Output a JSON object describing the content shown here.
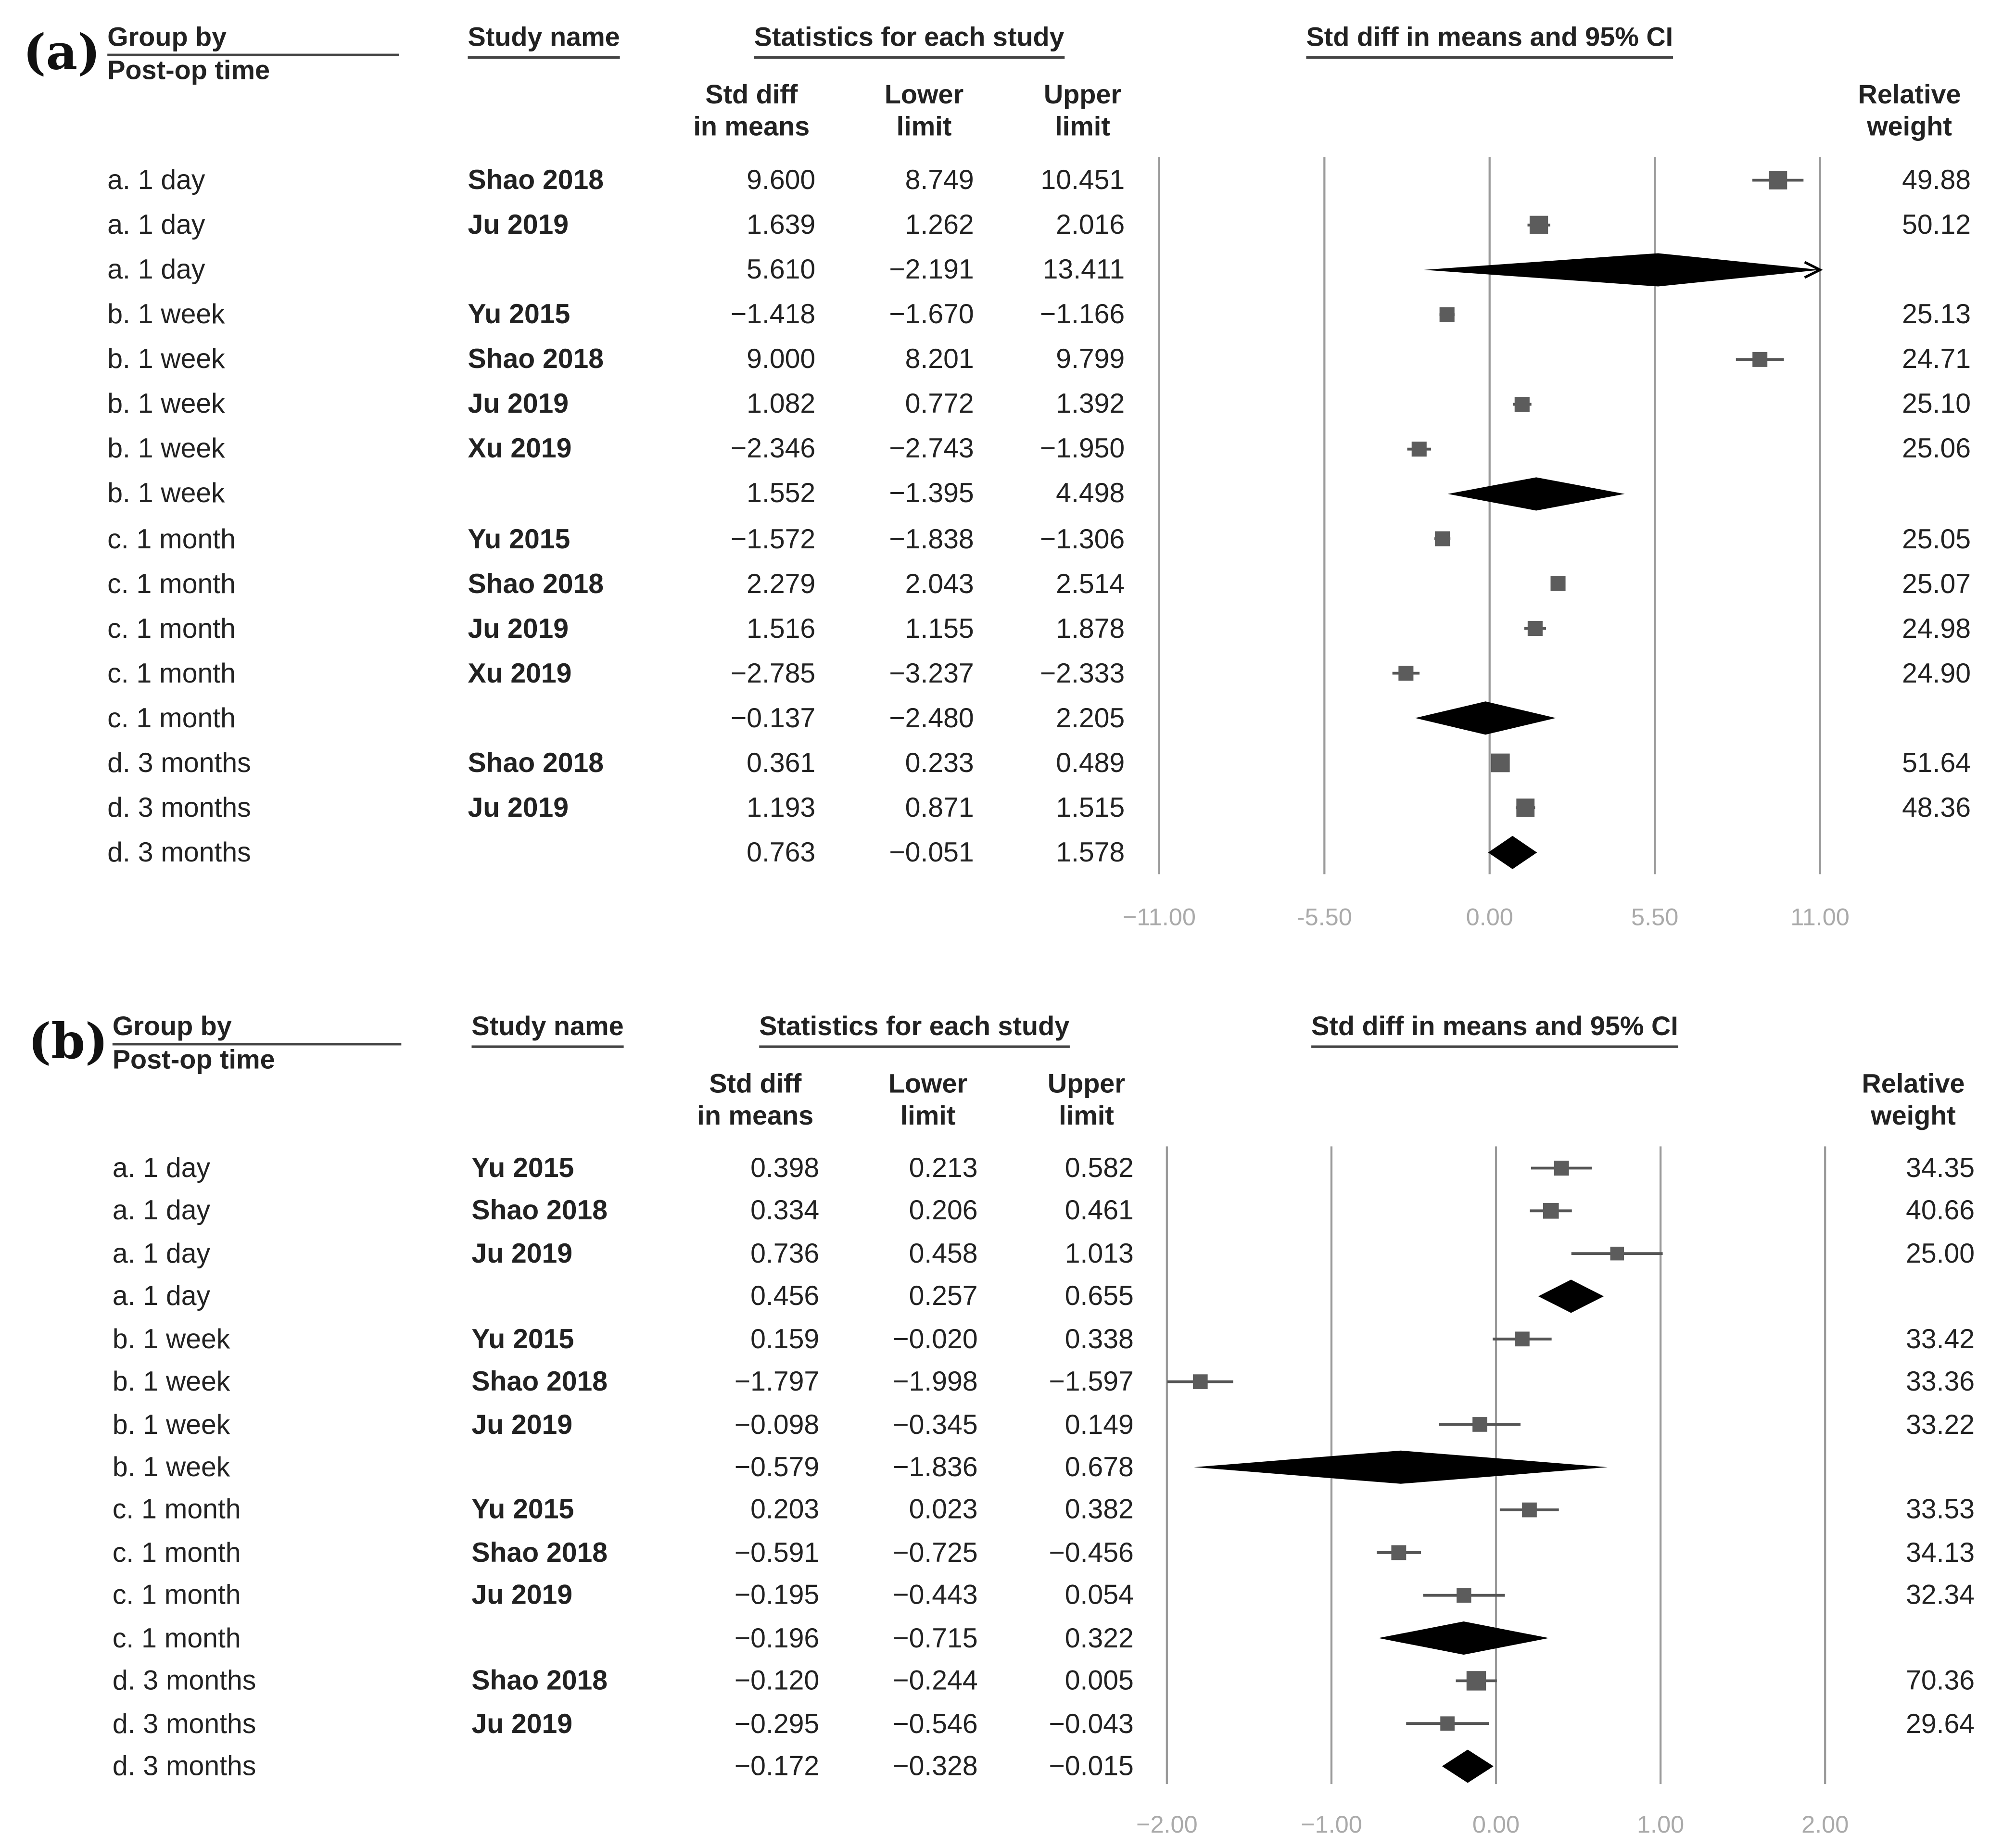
{
  "panels": [
    {
      "label": "(a)",
      "headers": {
        "group_line1": "Group by",
        "group_line2": "Post-op time",
        "study": "Study name",
        "stats": "Statistics for each study",
        "ci": "Std diff in means and 95% CI",
        "std_line1": "Std diff",
        "std_line2": "in means",
        "lower_line1": "Lower",
        "lower_line2": "limit",
        "upper_line1": "Upper",
        "upper_line2": "limit",
        "weight_line1": "Relative",
        "weight_line2": "weight"
      },
      "rows": [
        {
          "group": "a. 1 day",
          "study": "Shao 2018",
          "std": "9.600",
          "lower": "8.749",
          "upper": "10.451",
          "weight": "49.88"
        },
        {
          "group": "a. 1 day",
          "study": "Ju 2019",
          "std": "1.639",
          "lower": "1.262",
          "upper": "2.016",
          "weight": "50.12"
        },
        {
          "group": "a. 1 day",
          "study": "",
          "std": "5.610",
          "lower": "−2.191",
          "upper": "13.411",
          "weight": ""
        },
        {
          "group": "b. 1 week",
          "study": "Yu 2015",
          "std": "−1.418",
          "lower": "−1.670",
          "upper": "−1.166",
          "weight": "25.13"
        },
        {
          "group": "b. 1 week",
          "study": "Shao 2018",
          "std": "9.000",
          "lower": "8.201",
          "upper": "9.799",
          "weight": "24.71"
        },
        {
          "group": "b. 1 week",
          "study": "Ju 2019",
          "std": "1.082",
          "lower": "0.772",
          "upper": "1.392",
          "weight": "25.10"
        },
        {
          "group": "b. 1 week",
          "study": "Xu 2019",
          "std": "−2.346",
          "lower": "−2.743",
          "upper": "−1.950",
          "weight": "25.06"
        },
        {
          "group": "b. 1 week",
          "study": "",
          "std": "1.552",
          "lower": "−1.395",
          "upper": "4.498",
          "weight": ""
        },
        {
          "group": "c. 1 month",
          "study": "Yu 2015",
          "std": "−1.572",
          "lower": "−1.838",
          "upper": "−1.306",
          "weight": "25.05"
        },
        {
          "group": "c. 1 month",
          "study": "Shao 2018",
          "std": "2.279",
          "lower": "2.043",
          "upper": "2.514",
          "weight": "25.07"
        },
        {
          "group": "c. 1 month",
          "study": "Ju 2019",
          "std": "1.516",
          "lower": "1.155",
          "upper": "1.878",
          "weight": "24.98"
        },
        {
          "group": "c. 1 month",
          "study": "Xu 2019",
          "std": "−2.785",
          "lower": "−3.237",
          "upper": "−2.333",
          "weight": "24.90"
        },
        {
          "group": "c. 1 month",
          "study": "",
          "std": "−0.137",
          "lower": "−2.480",
          "upper": "2.205",
          "weight": ""
        },
        {
          "group": "d. 3 months",
          "study": "Shao 2018",
          "std": "0.361",
          "lower": "0.233",
          "upper": "0.489",
          "weight": "51.64"
        },
        {
          "group": "d. 3 months",
          "study": "Ju 2019",
          "std": "1.193",
          "lower": "0.871",
          "upper": "1.515",
          "weight": "48.36"
        },
        {
          "group": "d. 3 months",
          "study": "",
          "std": "0.763",
          "lower": "−0.051",
          "upper": "1.578",
          "weight": ""
        }
      ],
      "axis_ticks": [
        "−11.00",
        "-5.50",
        "0.00",
        "5.50",
        "11.00"
      ]
    },
    {
      "label": "(b)",
      "headers": {
        "group_line1": "Group by",
        "group_line2": "Post-op time",
        "study": "Study name",
        "stats": "Statistics for each study",
        "ci": "Std diff in means and 95% CI",
        "std_line1": "Std diff",
        "std_line2": "in means",
        "lower_line1": "Lower",
        "lower_line2": "limit",
        "upper_line1": "Upper",
        "upper_line2": "limit",
        "weight_line1": "Relative",
        "weight_line2": "weight"
      },
      "rows": [
        {
          "group": "a. 1 day",
          "study": "Yu 2015",
          "std": "0.398",
          "lower": "0.213",
          "upper": "0.582",
          "weight": "34.35"
        },
        {
          "group": "a. 1 day",
          "study": "Shao 2018",
          "std": "0.334",
          "lower": "0.206",
          "upper": "0.461",
          "weight": "40.66"
        },
        {
          "group": "a. 1 day",
          "study": "Ju 2019",
          "std": "0.736",
          "lower": "0.458",
          "upper": "1.013",
          "weight": "25.00"
        },
        {
          "group": "a. 1 day",
          "study": "",
          "std": "0.456",
          "lower": "0.257",
          "upper": "0.655",
          "weight": ""
        },
        {
          "group": "b. 1 week",
          "study": "Yu 2015",
          "std": "0.159",
          "lower": "−0.020",
          "upper": "0.338",
          "weight": "33.42"
        },
        {
          "group": "b. 1 week",
          "study": "Shao 2018",
          "std": "−1.797",
          "lower": "−1.998",
          "upper": "−1.597",
          "weight": "33.36"
        },
        {
          "group": "b. 1 week",
          "study": "Ju 2019",
          "std": "−0.098",
          "lower": "−0.345",
          "upper": "0.149",
          "weight": "33.22"
        },
        {
          "group": "b. 1 week",
          "study": "",
          "std": "−0.579",
          "lower": "−1.836",
          "upper": "0.678",
          "weight": ""
        },
        {
          "group": "c. 1 month",
          "study": "Yu 2015",
          "std": "0.203",
          "lower": "0.023",
          "upper": "0.382",
          "weight": "33.53"
        },
        {
          "group": "c. 1 month",
          "study": "Shao 2018",
          "std": "−0.591",
          "lower": "−0.725",
          "upper": "−0.456",
          "weight": "34.13"
        },
        {
          "group": "c. 1 month",
          "study": "Ju 2019",
          "std": "−0.195",
          "lower": "−0.443",
          "upper": "0.054",
          "weight": "32.34"
        },
        {
          "group": "c. 1 month",
          "study": "",
          "std": "−0.196",
          "lower": "−0.715",
          "upper": "0.322",
          "weight": ""
        },
        {
          "group": "d. 3 months",
          "study": "Shao 2018",
          "std": "−0.120",
          "lower": "−0.244",
          "upper": "0.005",
          "weight": "70.36"
        },
        {
          "group": "d. 3 months",
          "study": "Ju 2019",
          "std": "−0.295",
          "lower": "−0.546",
          "upper": "−0.043",
          "weight": "29.64"
        },
        {
          "group": "d. 3 months",
          "study": "",
          "std": "−0.172",
          "lower": "−0.328",
          "upper": "−0.015",
          "weight": ""
        }
      ],
      "axis_ticks": [
        "−2.00",
        "−1.00",
        "0.00",
        "1.00",
        "2.00"
      ]
    }
  ],
  "chart_data": [
    {
      "type": "forest",
      "title": "(a)",
      "xlabel": "Std diff in means and 95% CI",
      "xlim": [
        -11,
        11
      ],
      "ticks": [
        -11,
        -5.5,
        0,
        5.5,
        11
      ],
      "points": [
        {
          "group": "a. 1 day",
          "study": "Shao 2018",
          "est": 9.6,
          "lo": 8.749,
          "hi": 10.451,
          "weight": 49.88,
          "summary": false
        },
        {
          "group": "a. 1 day",
          "study": "Ju 2019",
          "est": 1.639,
          "lo": 1.262,
          "hi": 2.016,
          "weight": 50.12,
          "summary": false
        },
        {
          "group": "a. 1 day",
          "study": "",
          "est": 5.61,
          "lo": -2.191,
          "hi": 13.411,
          "weight": null,
          "summary": true
        },
        {
          "group": "b. 1 week",
          "study": "Yu 2015",
          "est": -1.418,
          "lo": -1.67,
          "hi": -1.166,
          "weight": 25.13,
          "summary": false
        },
        {
          "group": "b. 1 week",
          "study": "Shao 2018",
          "est": 9.0,
          "lo": 8.201,
          "hi": 9.799,
          "weight": 24.71,
          "summary": false
        },
        {
          "group": "b. 1 week",
          "study": "Ju 2019",
          "est": 1.082,
          "lo": 0.772,
          "hi": 1.392,
          "weight": 25.1,
          "summary": false
        },
        {
          "group": "b. 1 week",
          "study": "Xu 2019",
          "est": -2.346,
          "lo": -2.743,
          "hi": -1.95,
          "weight": 25.06,
          "summary": false
        },
        {
          "group": "b. 1 week",
          "study": "",
          "est": 1.552,
          "lo": -1.395,
          "hi": 4.498,
          "weight": null,
          "summary": true
        },
        {
          "group": "c. 1 month",
          "study": "Yu 2015",
          "est": -1.572,
          "lo": -1.838,
          "hi": -1.306,
          "weight": 25.05,
          "summary": false
        },
        {
          "group": "c. 1 month",
          "study": "Shao 2018",
          "est": 2.279,
          "lo": 2.043,
          "hi": 2.514,
          "weight": 25.07,
          "summary": false
        },
        {
          "group": "c. 1 month",
          "study": "Ju 2019",
          "est": 1.516,
          "lo": 1.155,
          "hi": 1.878,
          "weight": 24.98,
          "summary": false
        },
        {
          "group": "c. 1 month",
          "study": "Xu 2019",
          "est": -2.785,
          "lo": -3.237,
          "hi": -2.333,
          "weight": 24.9,
          "summary": false
        },
        {
          "group": "c. 1 month",
          "study": "",
          "est": -0.137,
          "lo": -2.48,
          "hi": 2.205,
          "weight": null,
          "summary": true
        },
        {
          "group": "d. 3 months",
          "study": "Shao 2018",
          "est": 0.361,
          "lo": 0.233,
          "hi": 0.489,
          "weight": 51.64,
          "summary": false
        },
        {
          "group": "d. 3 months",
          "study": "Ju 2019",
          "est": 1.193,
          "lo": 0.871,
          "hi": 1.515,
          "weight": 48.36,
          "summary": false
        },
        {
          "group": "d. 3 months",
          "study": "",
          "est": 0.763,
          "lo": -0.051,
          "hi": 1.578,
          "weight": null,
          "summary": true
        }
      ]
    },
    {
      "type": "forest",
      "title": "(b)",
      "xlabel": "Std diff in means and 95% CI",
      "xlim": [
        -2,
        2
      ],
      "ticks": [
        -2,
        -1,
        0,
        1,
        2
      ],
      "points": [
        {
          "group": "a. 1 day",
          "study": "Yu 2015",
          "est": 0.398,
          "lo": 0.213,
          "hi": 0.582,
          "weight": 34.35,
          "summary": false
        },
        {
          "group": "a. 1 day",
          "study": "Shao 2018",
          "est": 0.334,
          "lo": 0.206,
          "hi": 0.461,
          "weight": 40.66,
          "summary": false
        },
        {
          "group": "a. 1 day",
          "study": "Ju 2019",
          "est": 0.736,
          "lo": 0.458,
          "hi": 1.013,
          "weight": 25.0,
          "summary": false
        },
        {
          "group": "a. 1 day",
          "study": "",
          "est": 0.456,
          "lo": 0.257,
          "hi": 0.655,
          "weight": null,
          "summary": true
        },
        {
          "group": "b. 1 week",
          "study": "Yu 2015",
          "est": 0.159,
          "lo": -0.02,
          "hi": 0.338,
          "weight": 33.42,
          "summary": false
        },
        {
          "group": "b. 1 week",
          "study": "Shao 2018",
          "est": -1.797,
          "lo": -1.998,
          "hi": -1.597,
          "weight": 33.36,
          "summary": false
        },
        {
          "group": "b. 1 week",
          "study": "Ju 2019",
          "est": -0.098,
          "lo": -0.345,
          "hi": 0.149,
          "weight": 33.22,
          "summary": false
        },
        {
          "group": "b. 1 week",
          "study": "",
          "est": -0.579,
          "lo": -1.836,
          "hi": 0.678,
          "weight": null,
          "summary": true
        },
        {
          "group": "c. 1 month",
          "study": "Yu 2015",
          "est": 0.203,
          "lo": 0.023,
          "hi": 0.382,
          "weight": 33.53,
          "summary": false
        },
        {
          "group": "c. 1 month",
          "study": "Shao 2018",
          "est": -0.591,
          "lo": -0.725,
          "hi": -0.456,
          "weight": 34.13,
          "summary": false
        },
        {
          "group": "c. 1 month",
          "study": "Ju 2019",
          "est": -0.195,
          "lo": -0.443,
          "hi": 0.054,
          "weight": 32.34,
          "summary": false
        },
        {
          "group": "c. 1 month",
          "study": "",
          "est": -0.196,
          "lo": -0.715,
          "hi": 0.322,
          "weight": null,
          "summary": true
        },
        {
          "group": "d. 3 months",
          "study": "Shao 2018",
          "est": -0.12,
          "lo": -0.244,
          "hi": 0.005,
          "weight": 70.36,
          "summary": false
        },
        {
          "group": "d. 3 months",
          "study": "Ju 2019",
          "est": -0.295,
          "lo": -0.546,
          "hi": -0.043,
          "weight": 29.64,
          "summary": false
        },
        {
          "group": "d. 3 months",
          "study": "",
          "est": -0.172,
          "lo": -0.328,
          "hi": -0.015,
          "weight": null,
          "summary": true
        }
      ]
    }
  ]
}
